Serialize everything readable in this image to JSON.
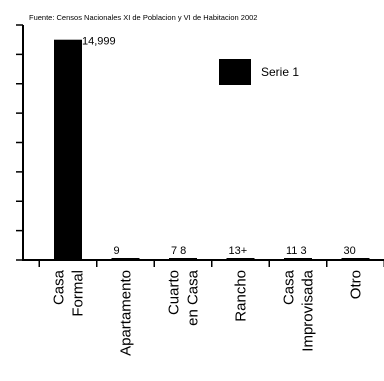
{
  "chart_data": {
    "type": "bar",
    "source": "Fuente: Censos Nacionales XI de Poblacion y VI de Habitacion 2002",
    "categories": [
      [
        "Casa",
        "Formal"
      ],
      [
        "Apartamento"
      ],
      [
        "Cuarto",
        "en Casa"
      ],
      [
        "Rancho"
      ],
      [
        "Casa",
        "Improvisada"
      ],
      [
        "Otro"
      ]
    ],
    "data_labels": [
      "14,999",
      "9",
      "7 8",
      "13+",
      "11 3",
      "30"
    ],
    "series": [
      {
        "name": "Serie 1",
        "values": [
          14999,
          9,
          78,
          130,
          113,
          30
        ]
      }
    ],
    "ylim": [
      0,
      16000
    ],
    "colors": {
      "bar": "#000000",
      "axis": "#000000"
    },
    "legend_position": "top-right"
  }
}
